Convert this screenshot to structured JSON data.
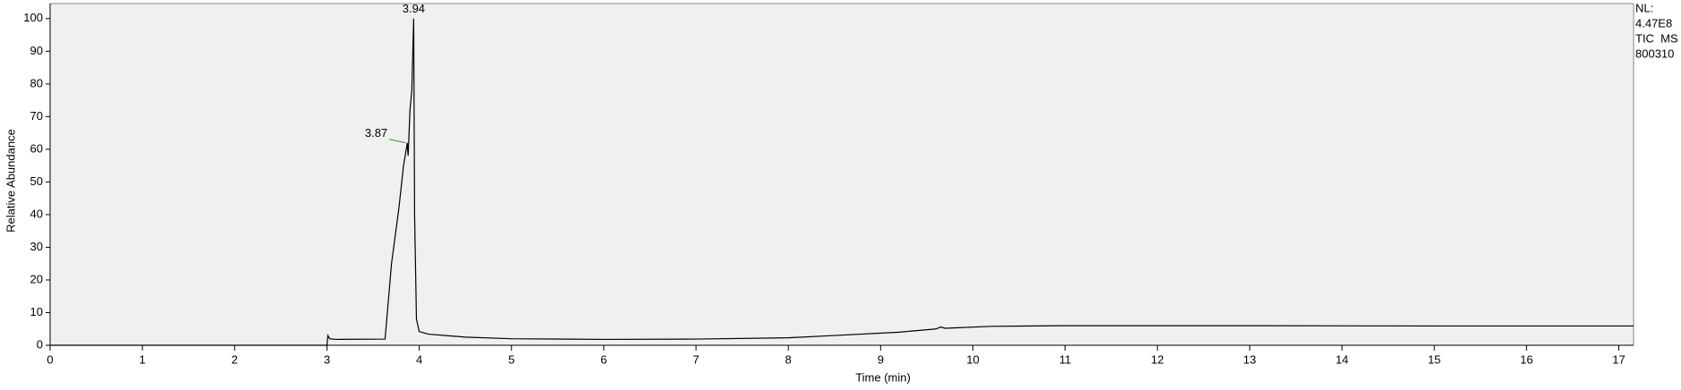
{
  "chart_data": {
    "type": "line",
    "x_label": "Time (min)",
    "y_label": "Relative Abundance",
    "xlim": [
      0,
      17.16
    ],
    "ylim": [
      0,
      104.6
    ],
    "xticks": [
      0,
      1,
      2,
      3,
      4,
      5,
      6,
      7,
      8,
      9,
      10,
      11,
      12,
      13,
      14,
      15,
      16,
      17
    ],
    "yticks": [
      0,
      10,
      20,
      30,
      40,
      50,
      60,
      70,
      80,
      90,
      100
    ],
    "series": [
      {
        "color": "#000000",
        "x": [
          0,
          3.0,
          3.01,
          3.03,
          3.1,
          3.63,
          3.7,
          3.78,
          3.83,
          3.86,
          3.87,
          3.88,
          3.9,
          3.92,
          3.94,
          3.95,
          3.97,
          4.0,
          4.1,
          4.5,
          5.0,
          6.0,
          7.0,
          8.0,
          8.5,
          9.2,
          9.6,
          9.65,
          9.7,
          10.2,
          11.0,
          13.0,
          15.0,
          17.16
        ],
        "values": [
          0,
          0,
          3.0,
          2.0,
          1.8,
          1.9,
          25,
          42,
          55,
          60,
          62,
          58,
          72,
          78,
          100,
          40,
          8,
          4.2,
          3.4,
          2.5,
          2.0,
          1.8,
          1.9,
          2.3,
          3.0,
          4.0,
          5.0,
          5.6,
          5.2,
          5.8,
          6.0,
          6.0,
          5.9,
          5.9
        ]
      }
    ],
    "peak_labels": [
      {
        "x": 3.94,
        "y": 100
      },
      {
        "x": 3.87,
        "y": 62
      }
    ],
    "info": [
      "NL:",
      "4.47E8",
      "TIC  MS",
      "800310"
    ]
  }
}
